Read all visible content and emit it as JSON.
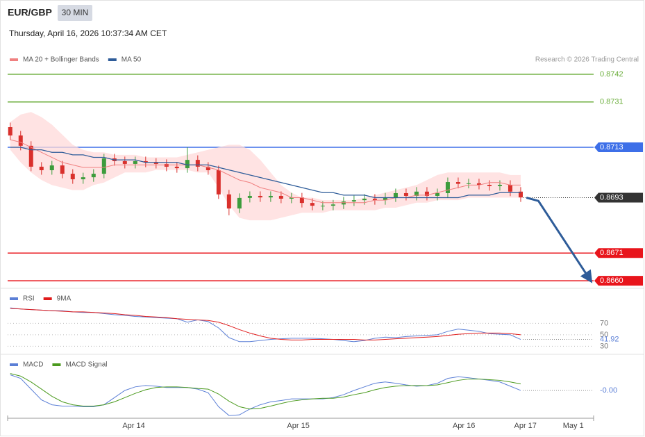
{
  "chart_data": [
    {
      "type": "candlestick",
      "title": "EUR/GBP",
      "timeframe": "30 MIN",
      "subtitle": "Thursday, April 16, 2026 10:37:34 AM CET",
      "credit": "Research © 2026 Trading Central",
      "up_color": "#3c9c3c",
      "down_color": "#d9302c",
      "x": [
        0,
        2,
        4,
        6,
        8,
        10,
        12,
        14,
        16,
        18,
        20,
        22,
        24,
        26,
        28,
        30,
        32,
        34,
        36,
        38,
        40,
        42,
        44,
        46,
        48,
        50,
        52,
        54,
        56,
        58,
        60,
        62,
        64,
        66,
        68,
        70,
        72,
        74,
        76,
        78,
        80,
        82,
        84,
        86,
        88,
        90,
        92,
        94,
        96,
        98
      ],
      "open": [
        0.8721,
        0.87177,
        0.87136,
        0.87053,
        0.87039,
        0.87058,
        0.87025,
        0.87003,
        0.87011,
        0.87025,
        0.87086,
        0.87075,
        0.87064,
        0.87075,
        0.87069,
        0.87064,
        0.87053,
        0.87047,
        0.8708,
        0.87053,
        0.87039,
        0.86943,
        0.86887,
        0.86929,
        0.86937,
        0.86931,
        0.86937,
        0.86926,
        0.86931,
        0.86909,
        0.86898,
        0.86898,
        0.86903,
        0.86915,
        0.8692,
        0.86926,
        0.8692,
        0.86931,
        0.86948,
        0.86937,
        0.86954,
        0.86937,
        0.86948,
        0.86992,
        0.86985,
        0.86987,
        0.86981,
        0.86976,
        0.86981,
        0.86954
      ],
      "high": [
        0.87228,
        0.87195,
        0.87154,
        0.87071,
        0.87076,
        0.87076,
        0.87043,
        0.87029,
        0.87043,
        0.87104,
        0.87104,
        0.87093,
        0.87093,
        0.87093,
        0.87087,
        0.87082,
        0.87071,
        0.8713,
        0.87098,
        0.87071,
        0.87057,
        0.86961,
        0.86947,
        0.86955,
        0.86955,
        0.86955,
        0.86955,
        0.86949,
        0.86949,
        0.86927,
        0.86916,
        0.86921,
        0.86933,
        0.86938,
        0.86944,
        0.86944,
        0.86949,
        0.86966,
        0.86966,
        0.86972,
        0.86972,
        0.86966,
        0.8701,
        0.8701,
        0.87005,
        0.87005,
        0.86999,
        0.86999,
        0.86999,
        0.86972
      ],
      "low": [
        0.87159,
        0.87118,
        0.87035,
        0.87021,
        0.87021,
        0.87007,
        0.86985,
        0.86985,
        0.86993,
        0.87007,
        0.87057,
        0.87046,
        0.87046,
        0.87051,
        0.87046,
        0.87035,
        0.87029,
        0.87029,
        0.87035,
        0.87021,
        0.86925,
        0.8686,
        0.86869,
        0.86911,
        0.86913,
        0.86913,
        0.86908,
        0.86908,
        0.86891,
        0.8688,
        0.8688,
        0.8688,
        0.86885,
        0.86897,
        0.86902,
        0.86902,
        0.86902,
        0.86913,
        0.86919,
        0.86919,
        0.86919,
        0.86919,
        0.8693,
        0.86967,
        0.86967,
        0.86963,
        0.86958,
        0.86958,
        0.86936,
        0.86913
      ],
      "close": [
        0.87177,
        0.87136,
        0.87053,
        0.87039,
        0.87058,
        0.87025,
        0.87003,
        0.87011,
        0.87025,
        0.87086,
        0.87075,
        0.87064,
        0.87075,
        0.87069,
        0.87064,
        0.87053,
        0.87047,
        0.8708,
        0.87053,
        0.87039,
        0.86943,
        0.86887,
        0.86929,
        0.86937,
        0.86931,
        0.86937,
        0.86926,
        0.86931,
        0.86909,
        0.86898,
        0.86898,
        0.86903,
        0.86915,
        0.8692,
        0.86926,
        0.8692,
        0.86931,
        0.86948,
        0.86937,
        0.86954,
        0.86937,
        0.86948,
        0.86992,
        0.86985,
        0.86987,
        0.86981,
        0.86976,
        0.86981,
        0.86954,
        0.86931
      ],
      "series": [
        {
          "name": "MA 20 + Bollinger Bands",
          "color": "#f08080",
          "band_color": "#ffd9d9",
          "values": [
            0.8716,
            0.8715,
            0.8713,
            0.8711,
            0.8709,
            0.8707,
            0.8706,
            0.8705,
            0.8705,
            0.8705,
            0.8706,
            0.8706,
            0.8706,
            0.8706,
            0.8706,
            0.8706,
            0.8706,
            0.8706,
            0.8706,
            0.8705,
            0.8704,
            0.8702,
            0.87,
            0.8699,
            0.8697,
            0.8696,
            0.8695,
            0.8693,
            0.8693,
            0.8692,
            0.8691,
            0.8691,
            0.8691,
            0.8691,
            0.8691,
            0.8692,
            0.8692,
            0.8693,
            0.8693,
            0.8694,
            0.8694,
            0.8695,
            0.8696,
            0.8697,
            0.8698,
            0.8698,
            0.8699,
            0.8699,
            0.8698,
            0.8698
          ],
          "upper": [
            0.8723,
            0.8726,
            0.8727,
            0.8725,
            0.8722,
            0.8718,
            0.8714,
            0.8712,
            0.8711,
            0.8711,
            0.871,
            0.871,
            0.871,
            0.8709,
            0.8709,
            0.8709,
            0.8709,
            0.871,
            0.8711,
            0.8712,
            0.8713,
            0.8714,
            0.8714,
            0.8712,
            0.8708,
            0.8703,
            0.8698,
            0.8695,
            0.8693,
            0.8693,
            0.8692,
            0.8692,
            0.8692,
            0.8692,
            0.8693,
            0.8694,
            0.8695,
            0.8696,
            0.8697,
            0.8698,
            0.87,
            0.8702,
            0.8703,
            0.8703,
            0.8703,
            0.8703,
            0.8703,
            0.8703,
            0.8702,
            0.8702
          ],
          "lower": [
            0.8712,
            0.8707,
            0.8703,
            0.87,
            0.8698,
            0.8697,
            0.8696,
            0.8696,
            0.8698,
            0.8699,
            0.8701,
            0.8703,
            0.8703,
            0.8703,
            0.8704,
            0.8704,
            0.8704,
            0.8704,
            0.8703,
            0.8703,
            0.8697,
            0.869,
            0.8685,
            0.8684,
            0.8684,
            0.8684,
            0.8685,
            0.8686,
            0.8687,
            0.8687,
            0.8687,
            0.8688,
            0.8688,
            0.8688,
            0.8688,
            0.8688,
            0.8689,
            0.8689,
            0.869,
            0.8691,
            0.8691,
            0.8692,
            0.8692,
            0.8692,
            0.8693,
            0.8693,
            0.8693,
            0.8693,
            0.8693,
            0.8693
          ]
        },
        {
          "name": "MA 50",
          "color": "#2e5c99",
          "values": [
            0.8713,
            0.8713,
            0.8712,
            0.8712,
            0.8711,
            0.8711,
            0.871,
            0.871,
            0.8709,
            0.8709,
            0.8708,
            0.8708,
            0.8708,
            0.8707,
            0.8707,
            0.8707,
            0.8707,
            0.8706,
            0.8706,
            0.8706,
            0.8705,
            0.8704,
            0.8703,
            0.8702,
            0.8701,
            0.87,
            0.8699,
            0.8698,
            0.8697,
            0.8696,
            0.8695,
            0.8695,
            0.8694,
            0.8694,
            0.8694,
            0.8693,
            0.8693,
            0.8693,
            0.8693,
            0.8693,
            0.8693,
            0.8693,
            0.8693,
            0.8693,
            0.8694,
            0.8694,
            0.8694,
            0.8695,
            0.8695,
            0.8695
          ]
        }
      ],
      "levels": [
        {
          "value": 0.8742,
          "color": "#6aad3a",
          "boxed": false
        },
        {
          "value": 0.8731,
          "color": "#6aad3a",
          "boxed": false
        },
        {
          "value": 0.8713,
          "color": "#3d6fe8",
          "boxed": true
        },
        {
          "value": 0.8693,
          "color": "#333333",
          "boxed": true,
          "dotted": true
        },
        {
          "value": 0.8671,
          "color": "#e8141b",
          "boxed": true
        },
        {
          "value": 0.866,
          "label": "0.8660",
          "color": "#e8141b",
          "boxed": true
        }
      ],
      "forecast": {
        "color": "#2e5c99",
        "x": [
          99.1,
          101.4,
          111.1
        ],
        "values": [
          0.8693,
          0.86917,
          0.86611
        ]
      },
      "xlim": [
        -0.5,
        112
      ],
      "ylim": [
        0.8657,
        0.87508
      ],
      "xticks": [
        {
          "value": 23.7,
          "label": "Apr 14"
        },
        {
          "value": 55.3,
          "label": "Apr 15"
        },
        {
          "value": 87.1,
          "label": "Apr 16"
        },
        {
          "value": 98.9,
          "label": "Apr 17"
        },
        {
          "value": 108.1,
          "label": "May 1"
        }
      ]
    },
    {
      "type": "line",
      "series": [
        {
          "name": "RSI",
          "color": "#5b7fd6",
          "values": [
            97,
            95,
            94,
            93,
            92,
            92,
            90,
            89,
            89,
            87,
            85,
            84,
            82,
            81,
            80,
            79,
            78,
            72,
            76,
            73,
            62,
            45,
            38,
            38,
            40,
            42,
            43,
            44,
            44,
            44,
            43,
            42,
            40,
            38,
            40,
            44,
            46,
            45,
            47,
            48,
            49,
            50,
            56,
            60,
            58,
            56,
            52,
            51,
            50,
            41.92
          ],
          "last_label": true
        },
        {
          "name": "9MA",
          "color": "#e01b1b",
          "values": [
            96,
            95,
            94,
            93,
            92,
            91,
            90,
            90,
            89,
            88,
            87,
            85,
            84,
            82,
            81,
            80,
            78,
            77,
            76,
            75,
            72,
            66,
            59,
            53,
            48,
            44,
            42,
            41,
            41,
            42,
            42,
            42,
            42,
            42,
            41,
            41,
            42,
            43,
            44,
            45,
            46,
            47,
            49,
            51,
            52,
            53,
            53,
            53,
            52,
            50
          ]
        }
      ],
      "ylim": [
        22,
        125
      ],
      "yticks": [
        70,
        50,
        30
      ]
    },
    {
      "type": "line",
      "series": [
        {
          "name": "MACD",
          "color": "#5b7fd6",
          "values": [
            0.00047,
            0.00036,
            3e-05,
            -0.0003,
            -0.00045,
            -0.00049,
            -0.00049,
            -0.00051,
            -0.00051,
            -0.00045,
            -0.00023,
            -1e-05,
            0.0001,
            0.00014,
            0.00012,
            8e-05,
            8e-05,
            8e-05,
            3e-05,
            -8e-05,
            -0.00051,
            -0.00078,
            -0.00076,
            -0.00058,
            -0.00045,
            -0.00036,
            -0.00032,
            -0.00027,
            -0.00027,
            -0.00027,
            -0.00027,
            -0.00023,
            -0.00014,
            -1e-05,
            0.0001,
            0.00021,
            0.00025,
            0.00021,
            0.00016,
            0.00012,
            0.00014,
            0.00021,
            0.00036,
            0.00041,
            0.00038,
            0.00034,
            0.0003,
            0.00025,
            0.00012,
            -1e-05
          ],
          "value_labels": [
            null,
            null,
            null,
            null,
            null,
            null,
            null,
            null,
            null,
            null,
            null,
            null,
            null,
            null,
            null,
            null,
            null,
            null,
            null,
            null,
            null,
            null,
            null,
            null,
            null,
            null,
            null,
            null,
            null,
            null,
            null,
            null,
            null,
            null,
            null,
            null,
            null,
            null,
            null,
            null,
            null,
            null,
            null,
            null,
            null,
            null,
            null,
            null,
            null,
            "-0.00"
          ]
        },
        {
          "name": "MACD Signal",
          "color": "#4b9a1e",
          "values": [
            0.00051,
            0.00043,
            0.00025,
            3e-05,
            -0.00019,
            -0.00036,
            -0.00045,
            -0.00049,
            -0.00049,
            -0.00045,
            -0.00036,
            -0.00023,
            -0.0001,
            1e-05,
            8e-05,
            0.0001,
            0.0001,
            8e-05,
            5e-05,
            3e-05,
            -0.00012,
            -0.00034,
            -0.00051,
            -0.00058,
            -0.00056,
            -0.00049,
            -0.00041,
            -0.00034,
            -0.0003,
            -0.00027,
            -0.00025,
            -0.00025,
            -0.00021,
            -0.00014,
            -8e-05,
            1e-05,
            8e-05,
            0.00012,
            0.00014,
            0.00014,
            0.00014,
            0.00016,
            0.00023,
            0.0003,
            0.00034,
            0.00034,
            0.00032,
            0.0003,
            0.00025,
            0.00019
          ]
        }
      ],
      "ylim": [
        -0.0008,
        0.0008
      ]
    }
  ]
}
